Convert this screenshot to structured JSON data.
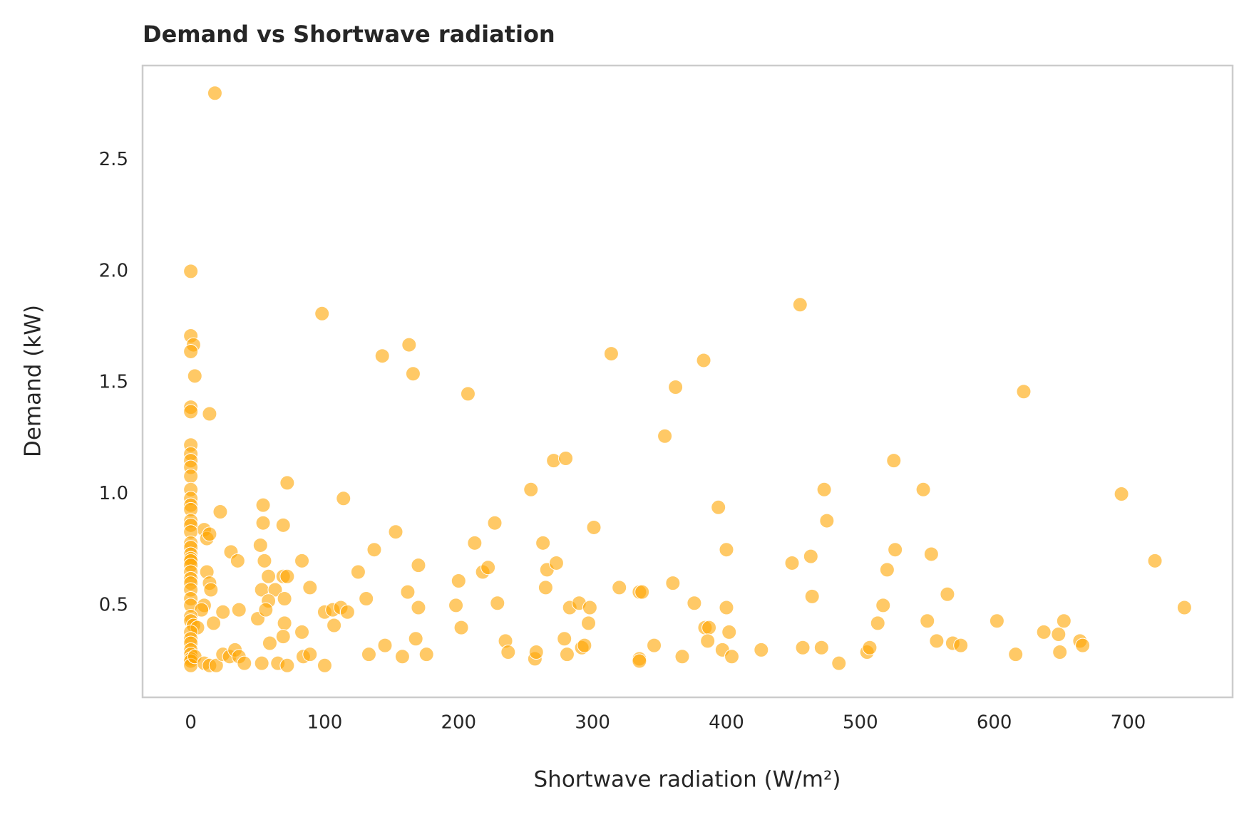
{
  "chart_data": {
    "type": "scatter",
    "title": "Demand vs Shortwave radiation",
    "x_label": "Shortwave radiation (W/m²)",
    "y_label": "Demand (kW)",
    "color": "#ffa500",
    "grid": true,
    "xlim": [
      -36,
      778
    ],
    "ylim": [
      0.087,
      2.924
    ],
    "xticks": [
      0,
      100,
      200,
      300,
      400,
      500,
      600,
      700
    ],
    "yticks": [
      0.5,
      {
        "value": 1.0,
        "label": "1.0"
      },
      1.5,
      {
        "value": 2.0,
        "label": "2.0"
      },
      2.5
    ],
    "series": [
      {
        "name": "Demand",
        "x": [
          18,
          0,
          98,
          455,
          0,
          2,
          0,
          3,
          143,
          163,
          166,
          314,
          383,
          362,
          207,
          622,
          0,
          0,
          14,
          354,
          0,
          0,
          0,
          0,
          0,
          271,
          280,
          525,
          72,
          0,
          254,
          473,
          547,
          695,
          0,
          114,
          0,
          54,
          0,
          394,
          22,
          0,
          0,
          54,
          69,
          227,
          475,
          10,
          0,
          12,
          14,
          153,
          301,
          0,
          0,
          212,
          263,
          52,
          0,
          0,
          30,
          137,
          400,
          526,
          553,
          0,
          0,
          35,
          55,
          83,
          463,
          720,
          0,
          12,
          125,
          218,
          222,
          170,
          266,
          273,
          449,
          520,
          0,
          0,
          14,
          58,
          69,
          72,
          200,
          0,
          15,
          53,
          63,
          89,
          162,
          265,
          320,
          335,
          337,
          360,
          464,
          565,
          0,
          0,
          10,
          8,
          58,
          70,
          131,
          198,
          229,
          170,
          100,
          106,
          112,
          117,
          283,
          290,
          298,
          376,
          400,
          517,
          742,
          0,
          0,
          2,
          5,
          17,
          24,
          36,
          50,
          56,
          70,
          107,
          202,
          297,
          384,
          387,
          402,
          513,
          550,
          602,
          637,
          652,
          0,
          0,
          0,
          69,
          59,
          83,
          168,
          235,
          279,
          386,
          557,
          569,
          575,
          648,
          664,
          0,
          0,
          0,
          0,
          0,
          3,
          10,
          14,
          19,
          24,
          29,
          33,
          36,
          40,
          53,
          65,
          72,
          84,
          89,
          100,
          133,
          145,
          158,
          176,
          237,
          257,
          258,
          281,
          292,
          294,
          335,
          335,
          346,
          367,
          397,
          404,
          426,
          457,
          471,
          484,
          505,
          507,
          616,
          649,
          666
        ],
        "y": [
          2.8,
          2.0,
          1.81,
          1.85,
          1.71,
          1.67,
          1.64,
          1.53,
          1.62,
          1.67,
          1.54,
          1.63,
          1.6,
          1.48,
          1.45,
          1.46,
          1.39,
          1.37,
          1.36,
          1.26,
          1.22,
          1.18,
          1.15,
          1.12,
          1.08,
          1.15,
          1.16,
          1.15,
          1.05,
          1.02,
          1.02,
          1.02,
          1.02,
          1.0,
          0.98,
          0.98,
          0.95,
          0.95,
          0.93,
          0.94,
          0.92,
          0.88,
          0.86,
          0.87,
          0.86,
          0.87,
          0.88,
          0.84,
          0.83,
          0.8,
          0.82,
          0.83,
          0.85,
          0.78,
          0.76,
          0.78,
          0.78,
          0.77,
          0.73,
          0.71,
          0.74,
          0.75,
          0.75,
          0.75,
          0.73,
          0.7,
          0.68,
          0.7,
          0.7,
          0.7,
          0.72,
          0.7,
          0.65,
          0.65,
          0.65,
          0.65,
          0.67,
          0.68,
          0.66,
          0.69,
          0.69,
          0.66,
          0.62,
          0.6,
          0.6,
          0.63,
          0.63,
          0.63,
          0.61,
          0.57,
          0.57,
          0.57,
          0.57,
          0.58,
          0.56,
          0.58,
          0.58,
          0.56,
          0.56,
          0.6,
          0.54,
          0.55,
          0.53,
          0.5,
          0.5,
          0.48,
          0.52,
          0.53,
          0.53,
          0.5,
          0.51,
          0.49,
          0.47,
          0.48,
          0.49,
          0.47,
          0.49,
          0.51,
          0.49,
          0.51,
          0.49,
          0.5,
          0.49,
          0.45,
          0.43,
          0.41,
          0.4,
          0.42,
          0.47,
          0.48,
          0.44,
          0.48,
          0.42,
          0.41,
          0.4,
          0.42,
          0.4,
          0.4,
          0.38,
          0.42,
          0.43,
          0.43,
          0.38,
          0.43,
          0.38,
          0.35,
          0.33,
          0.36,
          0.33,
          0.38,
          0.35,
          0.34,
          0.35,
          0.34,
          0.34,
          0.33,
          0.32,
          0.37,
          0.34,
          0.3,
          0.28,
          0.26,
          0.25,
          0.23,
          0.27,
          0.24,
          0.23,
          0.23,
          0.28,
          0.27,
          0.3,
          0.27,
          0.24,
          0.24,
          0.24,
          0.23,
          0.27,
          0.28,
          0.23,
          0.28,
          0.32,
          0.27,
          0.28,
          0.29,
          0.26,
          0.29,
          0.28,
          0.31,
          0.32,
          0.26,
          0.25,
          0.32,
          0.27,
          0.3,
          0.27,
          0.3,
          0.31,
          0.31,
          0.24,
          0.29,
          0.31,
          0.28,
          0.29,
          0.32
        ]
      }
    ]
  }
}
